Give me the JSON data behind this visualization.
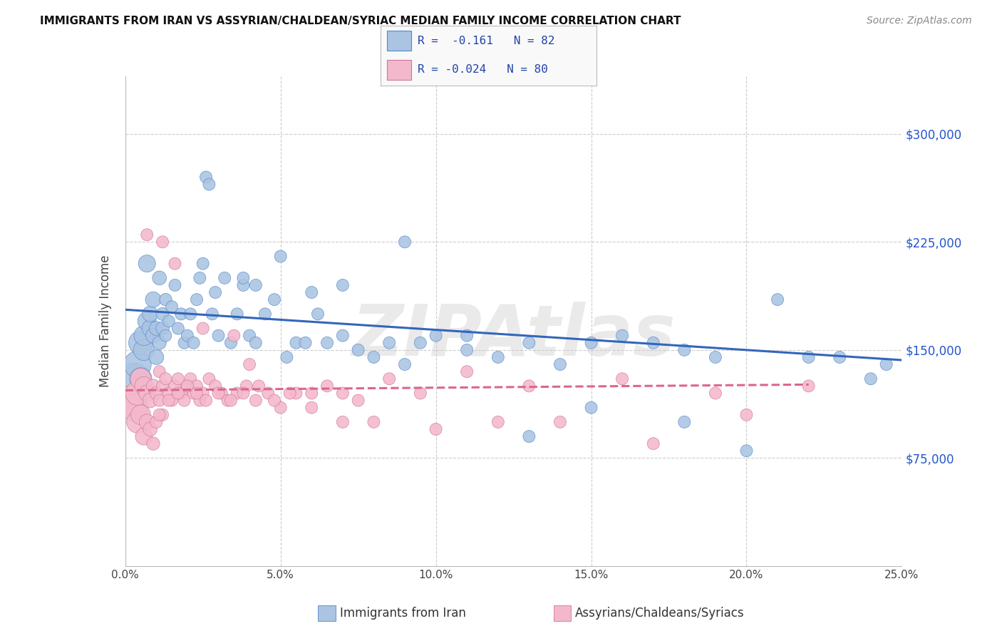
{
  "title": "IMMIGRANTS FROM IRAN VS ASSYRIAN/CHALDEAN/SYRIAC MEDIAN FAMILY INCOME CORRELATION CHART",
  "source": "Source: ZipAtlas.com",
  "ylabel": "Median Family Income",
  "y_ticks": [
    75000,
    150000,
    225000,
    300000
  ],
  "y_tick_labels": [
    "$75,000",
    "$150,000",
    "$225,000",
    "$300,000"
  ],
  "xlim": [
    0.0,
    0.25
  ],
  "ylim": [
    0,
    340000
  ],
  "series1_label": "Immigrants from Iran",
  "series1_color": "#aac4e2",
  "series1_edge_color": "#5588cc",
  "series1_R": "-0.161",
  "series1_N": "82",
  "series1_trend_color": "#3366bb",
  "series2_label": "Assyrians/Chaldeans/Syriacs",
  "series2_color": "#f4b8cc",
  "series2_edge_color": "#cc7799",
  "series2_R": "-0.024",
  "series2_N": "80",
  "series2_trend_color": "#dd6688",
  "watermark": "ZIPAtlas",
  "background_color": "#ffffff",
  "grid_color": "#cccccc",
  "trend1_x": [
    0.0,
    0.25
  ],
  "trend1_y": [
    178000,
    143000
  ],
  "trend2_x": [
    0.0,
    0.22
  ],
  "trend2_y": [
    122000,
    126000
  ],
  "series1_x": [
    0.003,
    0.004,
    0.005,
    0.005,
    0.006,
    0.006,
    0.007,
    0.007,
    0.008,
    0.008,
    0.009,
    0.009,
    0.01,
    0.01,
    0.011,
    0.011,
    0.012,
    0.012,
    0.013,
    0.013,
    0.014,
    0.015,
    0.016,
    0.017,
    0.018,
    0.019,
    0.02,
    0.021,
    0.022,
    0.023,
    0.024,
    0.025,
    0.026,
    0.027,
    0.028,
    0.029,
    0.03,
    0.032,
    0.034,
    0.036,
    0.038,
    0.04,
    0.042,
    0.045,
    0.048,
    0.052,
    0.055,
    0.058,
    0.062,
    0.065,
    0.07,
    0.075,
    0.08,
    0.085,
    0.09,
    0.095,
    0.1,
    0.11,
    0.12,
    0.13,
    0.14,
    0.15,
    0.16,
    0.17,
    0.18,
    0.19,
    0.2,
    0.22,
    0.24,
    0.038,
    0.042,
    0.05,
    0.06,
    0.07,
    0.09,
    0.11,
    0.13,
    0.15,
    0.18,
    0.21,
    0.23,
    0.245
  ],
  "series1_y": [
    130000,
    140000,
    155000,
    130000,
    150000,
    160000,
    170000,
    210000,
    165000,
    175000,
    185000,
    160000,
    145000,
    165000,
    200000,
    155000,
    165000,
    175000,
    185000,
    160000,
    170000,
    180000,
    195000,
    165000,
    175000,
    155000,
    160000,
    175000,
    155000,
    185000,
    200000,
    210000,
    270000,
    265000,
    175000,
    190000,
    160000,
    200000,
    155000,
    175000,
    195000,
    160000,
    155000,
    175000,
    185000,
    145000,
    155000,
    155000,
    175000,
    155000,
    160000,
    150000,
    145000,
    155000,
    140000,
    155000,
    160000,
    150000,
    145000,
    155000,
    140000,
    155000,
    160000,
    155000,
    150000,
    145000,
    80000,
    145000,
    130000,
    200000,
    195000,
    215000,
    190000,
    195000,
    225000,
    160000,
    90000,
    110000,
    100000,
    185000,
    145000,
    140000
  ],
  "series1_sizes": [
    200,
    150,
    120,
    100,
    90,
    80,
    70,
    60,
    55,
    50,
    50,
    45,
    45,
    40,
    40,
    38,
    36,
    34,
    32,
    30,
    30,
    30,
    30,
    30,
    30,
    30,
    30,
    30,
    30,
    30,
    30,
    30,
    30,
    30,
    30,
    30,
    30,
    30,
    30,
    30,
    30,
    30,
    30,
    30,
    30,
    30,
    30,
    30,
    30,
    30,
    30,
    30,
    30,
    30,
    30,
    30,
    30,
    30,
    30,
    30,
    30,
    30,
    30,
    30,
    30,
    30,
    30,
    30,
    30,
    30,
    30,
    30,
    30,
    30,
    30,
    30,
    30,
    30,
    30,
    30,
    30,
    30
  ],
  "series2_x": [
    0.002,
    0.003,
    0.004,
    0.004,
    0.005,
    0.005,
    0.006,
    0.006,
    0.007,
    0.007,
    0.008,
    0.008,
    0.009,
    0.009,
    0.01,
    0.01,
    0.011,
    0.011,
    0.012,
    0.012,
    0.013,
    0.014,
    0.015,
    0.016,
    0.017,
    0.018,
    0.019,
    0.02,
    0.021,
    0.022,
    0.023,
    0.024,
    0.025,
    0.027,
    0.029,
    0.031,
    0.033,
    0.036,
    0.039,
    0.042,
    0.046,
    0.05,
    0.055,
    0.06,
    0.065,
    0.07,
    0.075,
    0.085,
    0.095,
    0.11,
    0.13,
    0.16,
    0.19,
    0.22,
    0.011,
    0.014,
    0.017,
    0.02,
    0.023,
    0.026,
    0.03,
    0.034,
    0.038,
    0.043,
    0.048,
    0.053,
    0.06,
    0.07,
    0.08,
    0.1,
    0.12,
    0.14,
    0.17,
    0.2,
    0.007,
    0.012,
    0.016,
    0.025,
    0.035,
    0.04
  ],
  "series2_y": [
    115000,
    110000,
    120000,
    100000,
    130000,
    105000,
    125000,
    90000,
    120000,
    100000,
    115000,
    95000,
    125000,
    85000,
    120000,
    100000,
    135000,
    115000,
    125000,
    105000,
    130000,
    120000,
    115000,
    125000,
    130000,
    120000,
    115000,
    125000,
    130000,
    120000,
    125000,
    115000,
    120000,
    130000,
    125000,
    120000,
    115000,
    120000,
    125000,
    115000,
    120000,
    110000,
    120000,
    120000,
    125000,
    120000,
    115000,
    130000,
    120000,
    135000,
    125000,
    130000,
    120000,
    125000,
    105000,
    115000,
    120000,
    125000,
    120000,
    115000,
    120000,
    115000,
    120000,
    125000,
    115000,
    120000,
    110000,
    100000,
    100000,
    95000,
    100000,
    100000,
    85000,
    105000,
    230000,
    225000,
    210000,
    165000,
    160000,
    140000
  ],
  "series2_sizes": [
    180,
    150,
    120,
    100,
    90,
    80,
    70,
    60,
    55,
    50,
    45,
    40,
    38,
    35,
    33,
    31,
    30,
    30,
    30,
    30,
    30,
    30,
    30,
    30,
    30,
    30,
    30,
    30,
    30,
    30,
    30,
    30,
    30,
    30,
    30,
    30,
    30,
    30,
    30,
    30,
    30,
    30,
    30,
    30,
    30,
    30,
    30,
    30,
    30,
    30,
    30,
    30,
    30,
    30,
    30,
    30,
    30,
    30,
    30,
    30,
    30,
    30,
    30,
    30,
    30,
    30,
    30,
    30,
    30,
    30,
    30,
    30,
    30,
    30,
    30,
    30,
    30,
    30,
    30,
    30
  ]
}
